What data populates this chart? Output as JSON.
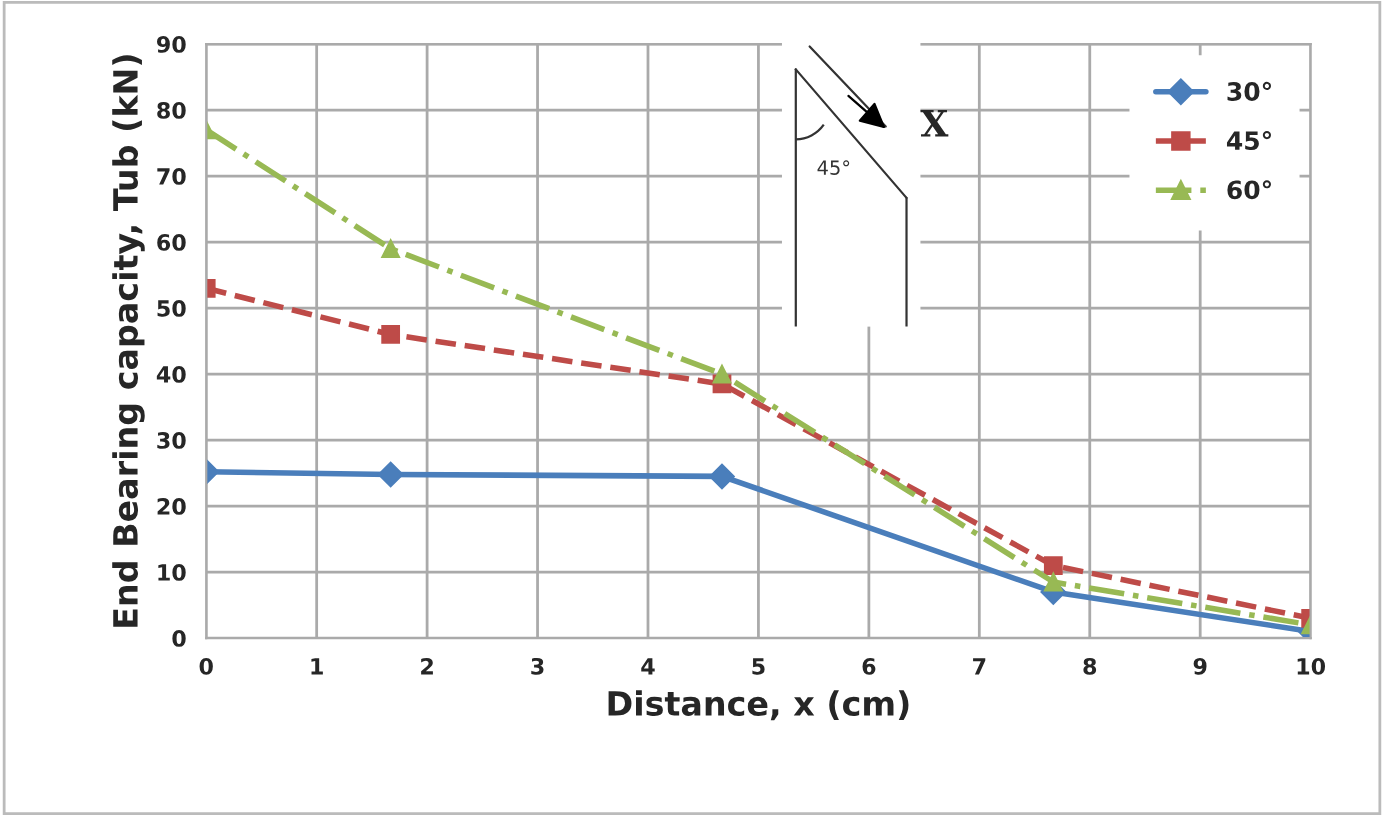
{
  "chart_data": {
    "type": "line",
    "xlabel": "Distance, x (cm)",
    "ylabel": "End Bearing capacity, Tub (kN)",
    "x": [
      0,
      1.67,
      4.67,
      7.67,
      10
    ],
    "series": [
      {
        "name": "30°",
        "color": "#4a7ebb",
        "marker": "diamond",
        "line_style": "solid",
        "values": [
          25.2,
          24.8,
          24.5,
          7,
          1
        ]
      },
      {
        "name": "45°",
        "color": "#be4b48",
        "marker": "square",
        "line_style": "dashed",
        "values": [
          53,
          46,
          38.5,
          11,
          3
        ]
      },
      {
        "name": "60°",
        "color": "#98b954",
        "marker": "triangle",
        "line_style": "dashdot",
        "values": [
          77,
          59,
          40,
          8.5,
          2
        ]
      }
    ],
    "xlim": [
      0,
      10
    ],
    "xticks": [
      0,
      1,
      2,
      3,
      4,
      5,
      6,
      7,
      8,
      9,
      10
    ],
    "ylim": [
      0,
      90
    ],
    "yticks": [
      0,
      10,
      20,
      30,
      40,
      50,
      60,
      70,
      80,
      90
    ],
    "grid": true,
    "legend": "top right",
    "annotations": [
      "X",
      "45°"
    ]
  }
}
